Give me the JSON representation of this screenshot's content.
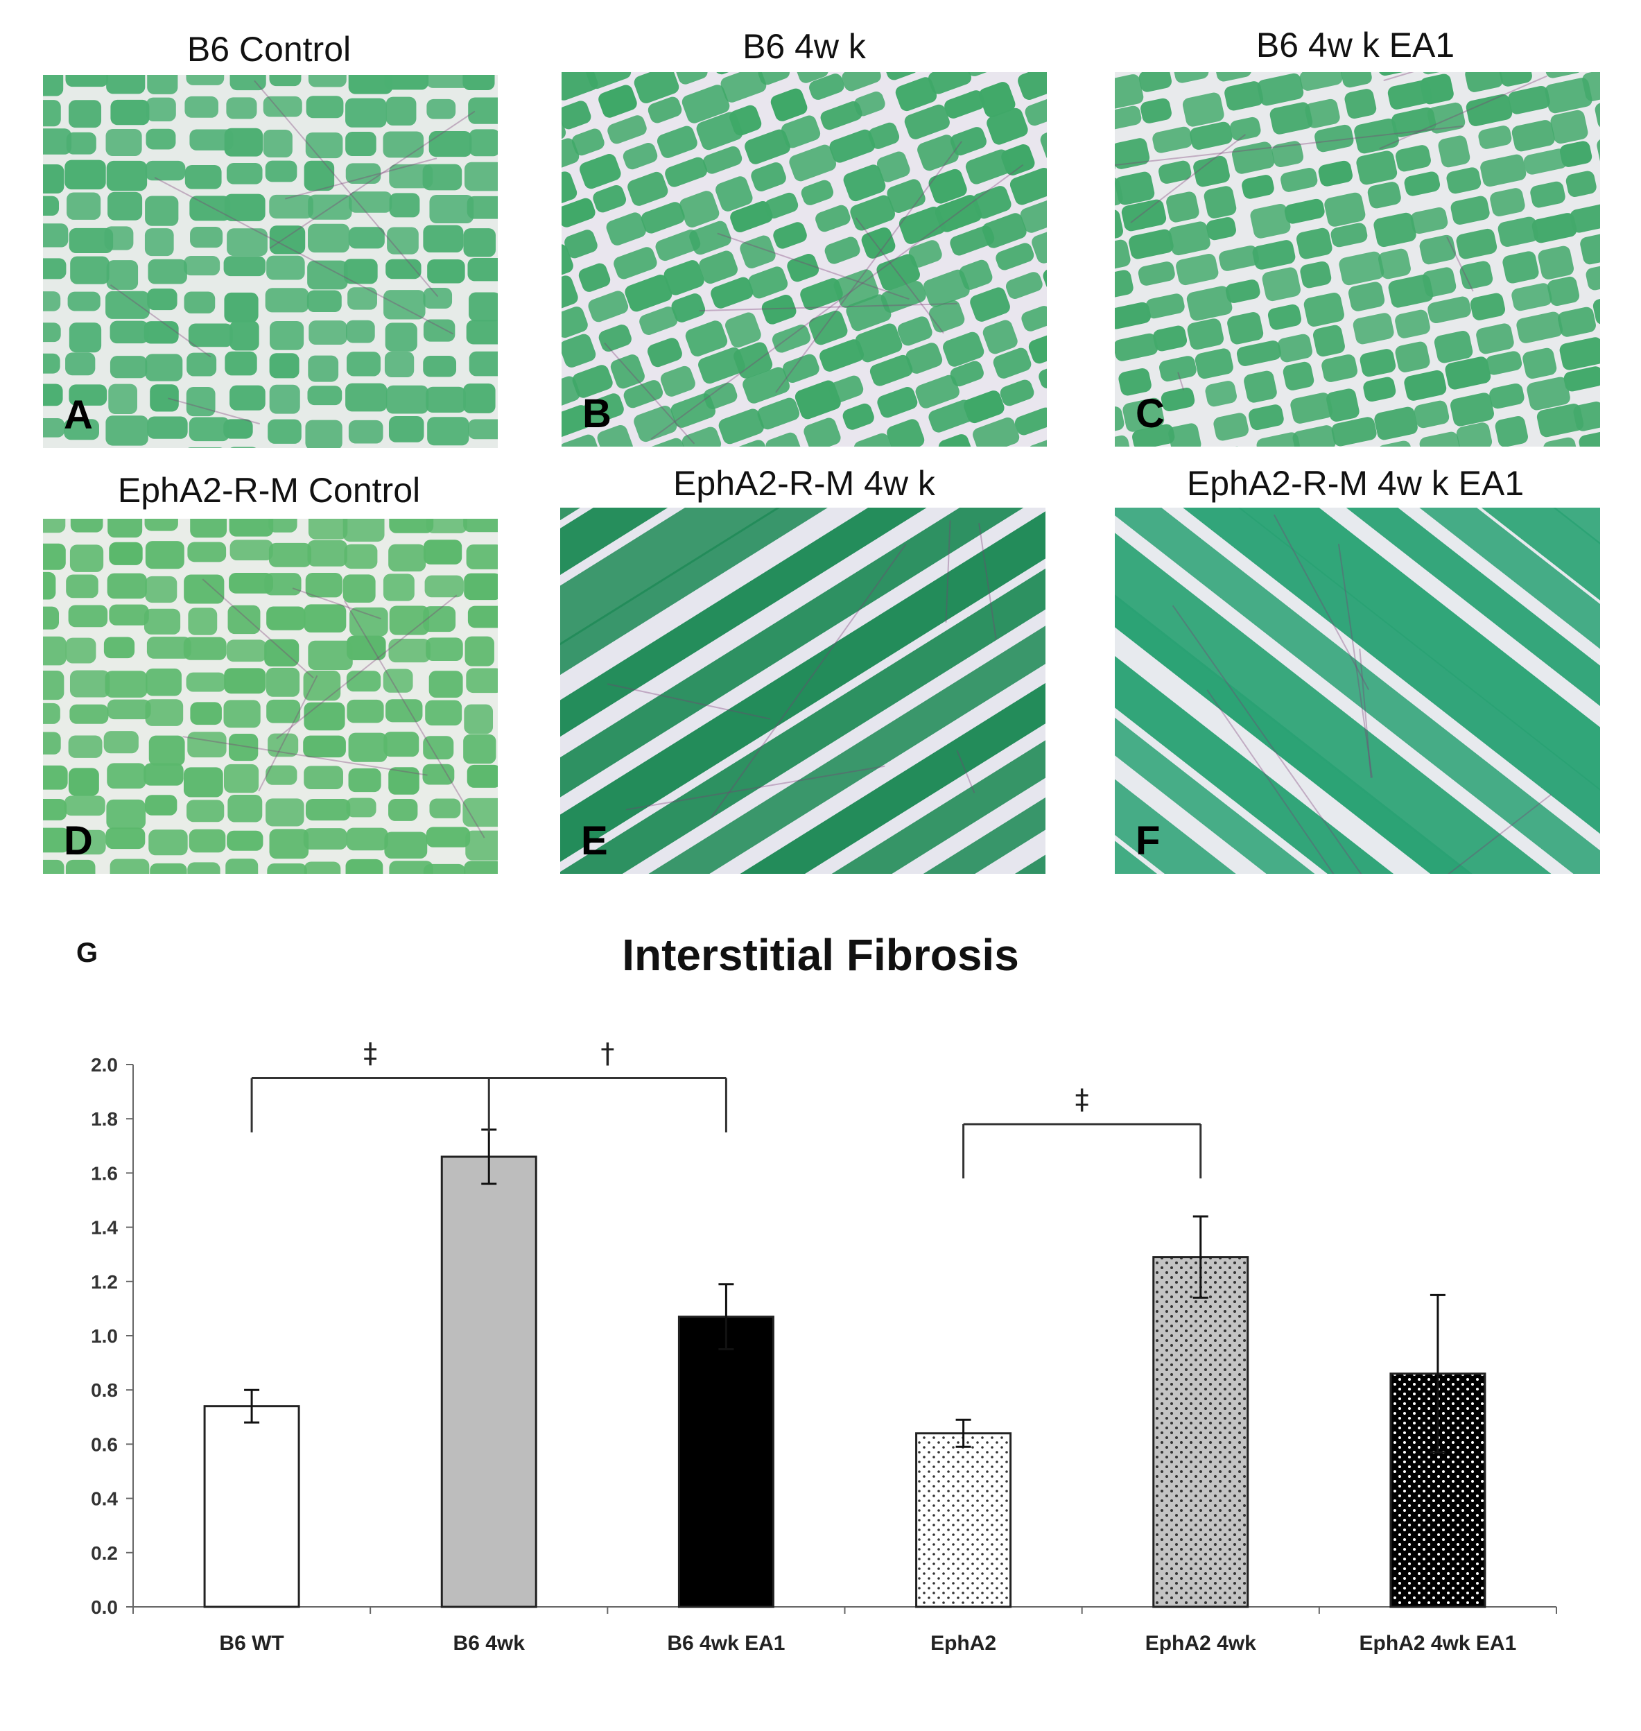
{
  "panels": [
    {
      "id": "A",
      "title": "B6 Control",
      "letter": "A",
      "tissue": "#4caf72",
      "gap": "#e6ebe8",
      "style": "cross"
    },
    {
      "id": "B",
      "title": "B6 4w k",
      "letter": "B",
      "tissue": "#3fa868",
      "gap": "#e9e6ee",
      "style": "cross"
    },
    {
      "id": "C",
      "title": "B6 4w k EA1",
      "letter": "C",
      "tissue": "#43a96b",
      "gap": "#e8eaec",
      "style": "cross"
    },
    {
      "id": "D",
      "title": "EphA2-R-M Control",
      "letter": "D",
      "tissue": "#5bb86c",
      "gap": "#e9ede8",
      "style": "cross"
    },
    {
      "id": "E",
      "title": "EphA2-R-M 4w k",
      "letter": "E",
      "tissue": "#1f8a57",
      "gap": "#e6e6ee",
      "style": "stripe"
    },
    {
      "id": "F",
      "title": "EphA2-R-M 4w k EA1",
      "letter": "F",
      "tissue": "#2aa274",
      "gap": "#e7eaee",
      "style": "stripe"
    }
  ],
  "panel_g_label": "G",
  "chart_data": {
    "type": "bar",
    "title": "Interstitial Fibrosis",
    "xlabel": "",
    "ylabel": "",
    "ylim": [
      0,
      2.0
    ],
    "yticks": [
      "0.0",
      "0.2",
      "0.4",
      "0.6",
      "0.8",
      "1.0",
      "1.2",
      "1.4",
      "1.6",
      "1.8",
      "2.0"
    ],
    "categories": [
      "B6 WT",
      "B6 4wk",
      "B6 4wk EA1",
      "EphA2",
      "EphA2 4wk",
      "EphA2 4wk EA1"
    ],
    "values": [
      0.74,
      1.66,
      1.07,
      0.64,
      1.29,
      0.86
    ],
    "errors": [
      0.06,
      0.1,
      0.12,
      0.05,
      0.15,
      0.29
    ],
    "fills": [
      "white",
      "#bdbdbd",
      "#000000",
      "dots-white",
      "dots-grey",
      "dots-black"
    ],
    "grid": false,
    "significance": [
      {
        "symbol": "‡",
        "from": 0,
        "to": 1
      },
      {
        "symbol": "†",
        "from": 1,
        "to": 2
      },
      {
        "symbol": "‡",
        "from": 3,
        "to": 4
      }
    ]
  }
}
